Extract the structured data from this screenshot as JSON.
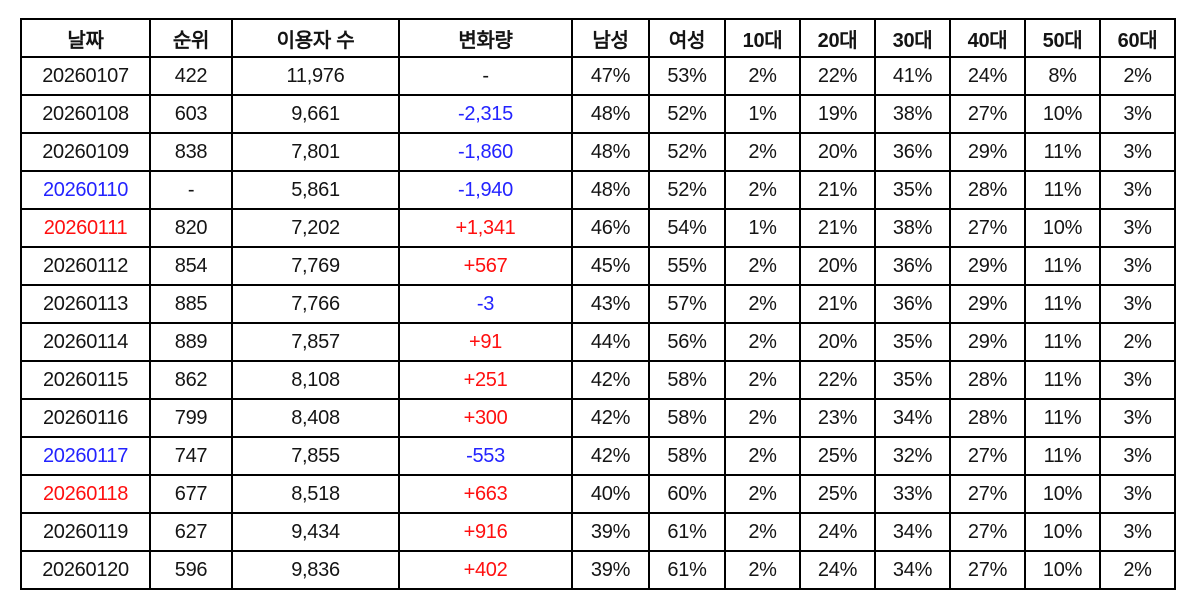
{
  "chart_data": {
    "type": "table",
    "title": "",
    "colors": {
      "red": "#ff0f0f",
      "blue": "#2323ff",
      "black": "#141414"
    },
    "columns": [
      {
        "key": "date",
        "label": "날짜"
      },
      {
        "key": "rank",
        "label": "순위"
      },
      {
        "key": "users",
        "label": "이용자 수"
      },
      {
        "key": "change",
        "label": "변화량"
      },
      {
        "key": "male",
        "label": "남성"
      },
      {
        "key": "female",
        "label": "여성"
      },
      {
        "key": "age10",
        "label": "10대"
      },
      {
        "key": "age20",
        "label": "20대"
      },
      {
        "key": "age30",
        "label": "30대"
      },
      {
        "key": "age40",
        "label": "40대"
      },
      {
        "key": "age50",
        "label": "50대"
      },
      {
        "key": "age60",
        "label": "60대"
      }
    ],
    "rows": [
      {
        "date": "20260107",
        "dateColor": "black",
        "rank": "422",
        "users": "11,976",
        "change": "-",
        "changeColor": "black",
        "male": "47%",
        "female": "53%",
        "age10": "2%",
        "age20": "22%",
        "age30": "41%",
        "age40": "24%",
        "age50": "8%",
        "age60": "2%"
      },
      {
        "date": "20260108",
        "dateColor": "black",
        "rank": "603",
        "users": "9,661",
        "change": "-2,315",
        "changeColor": "blue",
        "male": "48%",
        "female": "52%",
        "age10": "1%",
        "age20": "19%",
        "age30": "38%",
        "age40": "27%",
        "age50": "10%",
        "age60": "3%"
      },
      {
        "date": "20260109",
        "dateColor": "black",
        "rank": "838",
        "users": "7,801",
        "change": "-1,860",
        "changeColor": "blue",
        "male": "48%",
        "female": "52%",
        "age10": "2%",
        "age20": "20%",
        "age30": "36%",
        "age40": "29%",
        "age50": "11%",
        "age60": "3%"
      },
      {
        "date": "20260110",
        "dateColor": "blue",
        "rank": "-",
        "users": "5,861",
        "change": "-1,940",
        "changeColor": "blue",
        "male": "48%",
        "female": "52%",
        "age10": "2%",
        "age20": "21%",
        "age30": "35%",
        "age40": "28%",
        "age50": "11%",
        "age60": "3%"
      },
      {
        "date": "20260111",
        "dateColor": "red",
        "rank": "820",
        "users": "7,202",
        "change": "+1,341",
        "changeColor": "red",
        "male": "46%",
        "female": "54%",
        "age10": "1%",
        "age20": "21%",
        "age30": "38%",
        "age40": "27%",
        "age50": "10%",
        "age60": "3%"
      },
      {
        "date": "20260112",
        "dateColor": "black",
        "rank": "854",
        "users": "7,769",
        "change": "+567",
        "changeColor": "red",
        "male": "45%",
        "female": "55%",
        "age10": "2%",
        "age20": "20%",
        "age30": "36%",
        "age40": "29%",
        "age50": "11%",
        "age60": "3%"
      },
      {
        "date": "20260113",
        "dateColor": "black",
        "rank": "885",
        "users": "7,766",
        "change": "-3",
        "changeColor": "blue",
        "male": "43%",
        "female": "57%",
        "age10": "2%",
        "age20": "21%",
        "age30": "36%",
        "age40": "29%",
        "age50": "11%",
        "age60": "3%"
      },
      {
        "date": "20260114",
        "dateColor": "black",
        "rank": "889",
        "users": "7,857",
        "change": "+91",
        "changeColor": "red",
        "male": "44%",
        "female": "56%",
        "age10": "2%",
        "age20": "20%",
        "age30": "35%",
        "age40": "29%",
        "age50": "11%",
        "age60": "2%"
      },
      {
        "date": "20260115",
        "dateColor": "black",
        "rank": "862",
        "users": "8,108",
        "change": "+251",
        "changeColor": "red",
        "male": "42%",
        "female": "58%",
        "age10": "2%",
        "age20": "22%",
        "age30": "35%",
        "age40": "28%",
        "age50": "11%",
        "age60": "3%"
      },
      {
        "date": "20260116",
        "dateColor": "black",
        "rank": "799",
        "users": "8,408",
        "change": "+300",
        "changeColor": "red",
        "male": "42%",
        "female": "58%",
        "age10": "2%",
        "age20": "23%",
        "age30": "34%",
        "age40": "28%",
        "age50": "11%",
        "age60": "3%"
      },
      {
        "date": "20260117",
        "dateColor": "blue",
        "rank": "747",
        "users": "7,855",
        "change": "-553",
        "changeColor": "blue",
        "male": "42%",
        "female": "58%",
        "age10": "2%",
        "age20": "25%",
        "age30": "32%",
        "age40": "27%",
        "age50": "11%",
        "age60": "3%"
      },
      {
        "date": "20260118",
        "dateColor": "red",
        "rank": "677",
        "users": "8,518",
        "change": "+663",
        "changeColor": "red",
        "male": "40%",
        "female": "60%",
        "age10": "2%",
        "age20": "25%",
        "age30": "33%",
        "age40": "27%",
        "age50": "10%",
        "age60": "3%"
      },
      {
        "date": "20260119",
        "dateColor": "black",
        "rank": "627",
        "users": "9,434",
        "change": "+916",
        "changeColor": "red",
        "male": "39%",
        "female": "61%",
        "age10": "2%",
        "age20": "24%",
        "age30": "34%",
        "age40": "27%",
        "age50": "10%",
        "age60": "3%"
      },
      {
        "date": "20260120",
        "dateColor": "black",
        "rank": "596",
        "users": "9,836",
        "change": "+402",
        "changeColor": "red",
        "male": "39%",
        "female": "61%",
        "age10": "2%",
        "age20": "24%",
        "age30": "34%",
        "age40": "27%",
        "age50": "10%",
        "age60": "2%"
      }
    ]
  }
}
